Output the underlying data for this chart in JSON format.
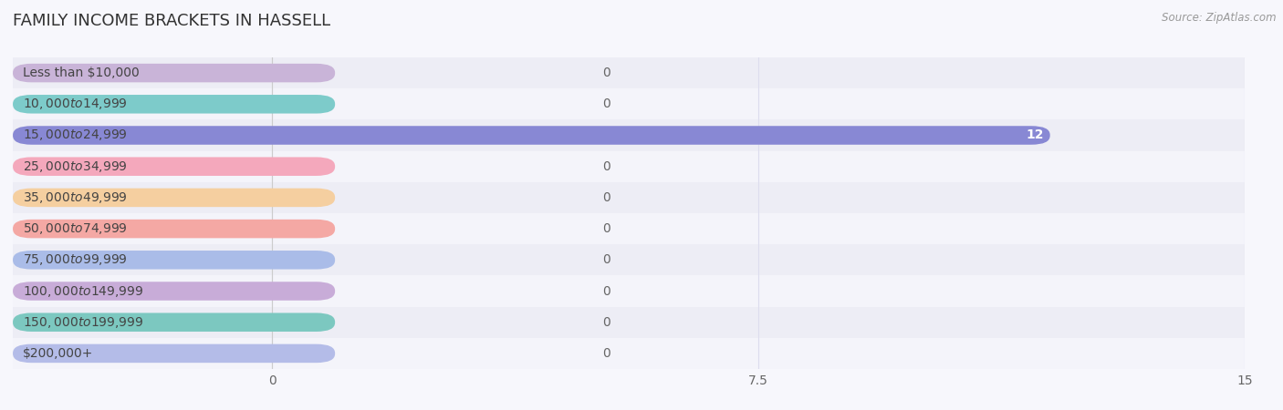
{
  "title": "FAMILY INCOME BRACKETS IN HASSELL",
  "source": "Source: ZipAtlas.com",
  "categories": [
    "Less than $10,000",
    "$10,000 to $14,999",
    "$15,000 to $24,999",
    "$25,000 to $34,999",
    "$35,000 to $49,999",
    "$50,000 to $74,999",
    "$75,000 to $99,999",
    "$100,000 to $149,999",
    "$150,000 to $199,999",
    "$200,000+"
  ],
  "values": [
    0,
    0,
    12,
    0,
    0,
    0,
    0,
    0,
    0,
    0
  ],
  "bar_colors": [
    "#c9b4d8",
    "#7dcbca",
    "#8888d4",
    "#f4a8bc",
    "#f5cfa0",
    "#f4a8a4",
    "#aabce8",
    "#c8acd8",
    "#7cc8c0",
    "#b4bce8"
  ],
  "background_color": "#f7f7fc",
  "xlim": [
    0,
    15
  ],
  "xticks": [
    0,
    7.5,
    15
  ],
  "title_fontsize": 13,
  "label_fontsize": 10,
  "tick_fontsize": 10,
  "bar_height": 0.6,
  "value_label_color_inside": "#ffffff",
  "value_label_color_outside": "#666666",
  "grid_color": "#ddddee",
  "row_even_color": "#ededf5",
  "row_odd_color": "#f4f4fa"
}
